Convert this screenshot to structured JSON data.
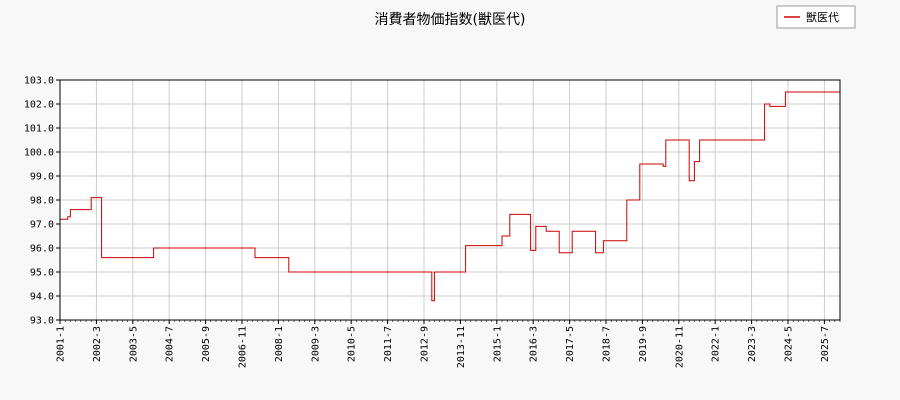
{
  "chart_data": {
    "type": "line",
    "title": "消費者物価指数(獣医代)",
    "xlabel": "",
    "ylabel": "",
    "legend_position": "top-right",
    "grid": true,
    "ylim": [
      93.0,
      103.0
    ],
    "xlim": [
      "2001-01",
      "2025-12"
    ],
    "yticks": [
      "93.0",
      "94.0",
      "95.0",
      "96.0",
      "97.0",
      "98.0",
      "99.0",
      "100.0",
      "101.0",
      "102.0",
      "103.0"
    ],
    "xticks": [
      "2001-1",
      "2002-3",
      "2003-5",
      "2004-7",
      "2005-9",
      "2006-11",
      "2008-1",
      "2009-3",
      "2010-5",
      "2011-7",
      "2012-9",
      "2013-11",
      "2015-1",
      "2016-3",
      "2017-5",
      "2018-7",
      "2019-9",
      "2020-11",
      "2022-1",
      "2023-3",
      "2024-5",
      "2025-7"
    ],
    "series": [
      {
        "name": "獣医代",
        "color": "#cc0000",
        "steps": [
          [
            "2001-01",
            97.2
          ],
          [
            "2001-04",
            97.3
          ],
          [
            "2001-05",
            97.6
          ],
          [
            "2002-01",
            98.1
          ],
          [
            "2002-05",
            95.6
          ],
          [
            "2004-01",
            96.0
          ],
          [
            "2007-04",
            95.6
          ],
          [
            "2008-05",
            95.0
          ],
          [
            "2012-12",
            93.8
          ],
          [
            "2013-01",
            95.0
          ],
          [
            "2014-01",
            96.1
          ],
          [
            "2015-03",
            96.5
          ],
          [
            "2015-06",
            97.4
          ],
          [
            "2016-02",
            95.9
          ],
          [
            "2016-04",
            96.9
          ],
          [
            "2016-08",
            96.7
          ],
          [
            "2017-01",
            95.8
          ],
          [
            "2017-06",
            96.7
          ],
          [
            "2018-03",
            95.8
          ],
          [
            "2018-06",
            96.3
          ],
          [
            "2019-03",
            98.0
          ],
          [
            "2019-08",
            99.5
          ],
          [
            "2020-05",
            99.4
          ],
          [
            "2020-06",
            100.5
          ],
          [
            "2021-03",
            98.8
          ],
          [
            "2021-05",
            99.6
          ],
          [
            "2021-07",
            100.5
          ],
          [
            "2023-08",
            102.0
          ],
          [
            "2023-10",
            101.9
          ],
          [
            "2024-04",
            102.5
          ],
          [
            "2025-12",
            102.5
          ]
        ]
      }
    ]
  }
}
